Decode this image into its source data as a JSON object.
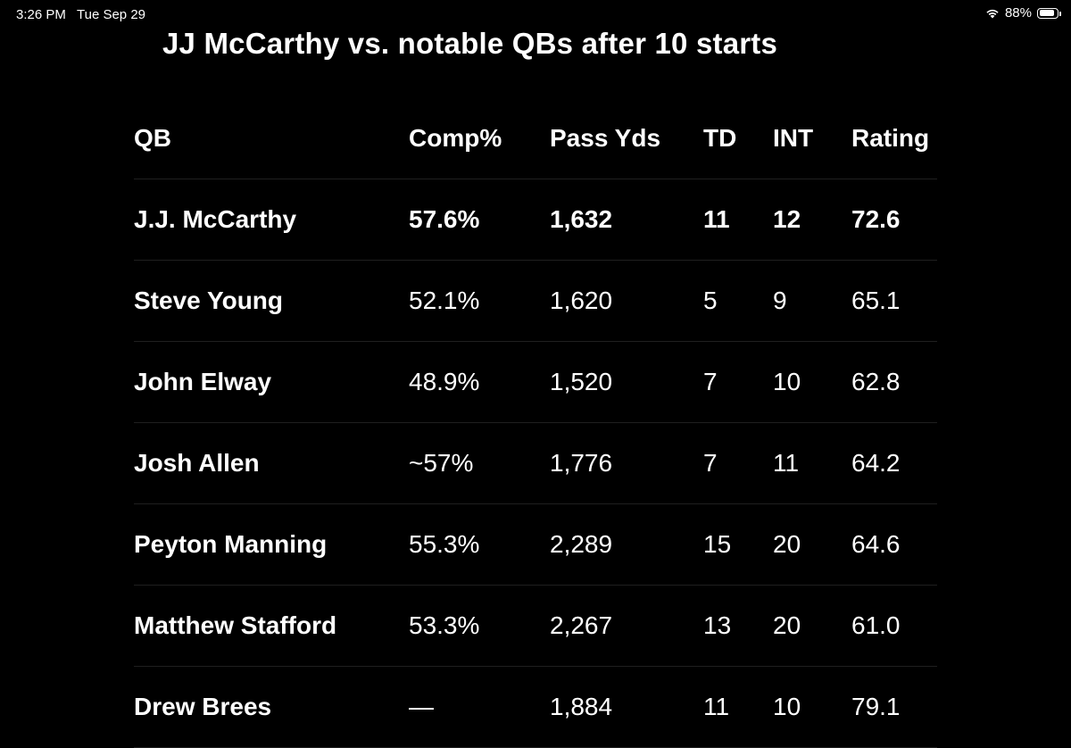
{
  "status_bar": {
    "time": "3:26 PM",
    "date": "Tue Sep 29",
    "battery": "88%",
    "battery_level": 0.88
  },
  "title": "JJ McCarthy vs. notable QBs after 10 starts",
  "table": {
    "columns": [
      "QB",
      "Comp%",
      "Pass Yds",
      "TD",
      "INT",
      "Rating"
    ],
    "rows": [
      {
        "qb": "J.J. McCarthy",
        "comp": "57.6%",
        "yds": "1,632",
        "td": "11",
        "int": "12",
        "rating": "72.6"
      },
      {
        "qb": "Steve Young",
        "comp": "52.1%",
        "yds": "1,620",
        "td": "5",
        "int": "9",
        "rating": "65.1"
      },
      {
        "qb": "John Elway",
        "comp": "48.9%",
        "yds": "1,520",
        "td": "7",
        "int": "10",
        "rating": "62.8"
      },
      {
        "qb": "Josh Allen",
        "comp": "~57%",
        "yds": "1,776",
        "td": "7",
        "int": "11",
        "rating": "64.2"
      },
      {
        "qb": "Peyton Manning",
        "comp": "55.3%",
        "yds": "2,289",
        "td": "15",
        "int": "20",
        "rating": "64.6"
      },
      {
        "qb": "Matthew Stafford",
        "comp": "53.3%",
        "yds": "2,267",
        "td": "13",
        "int": "20",
        "rating": "61.0"
      },
      {
        "qb": "Drew Brees",
        "comp": "—",
        "yds": "1,884",
        "td": "11",
        "int": "10",
        "rating": "79.1"
      }
    ]
  }
}
